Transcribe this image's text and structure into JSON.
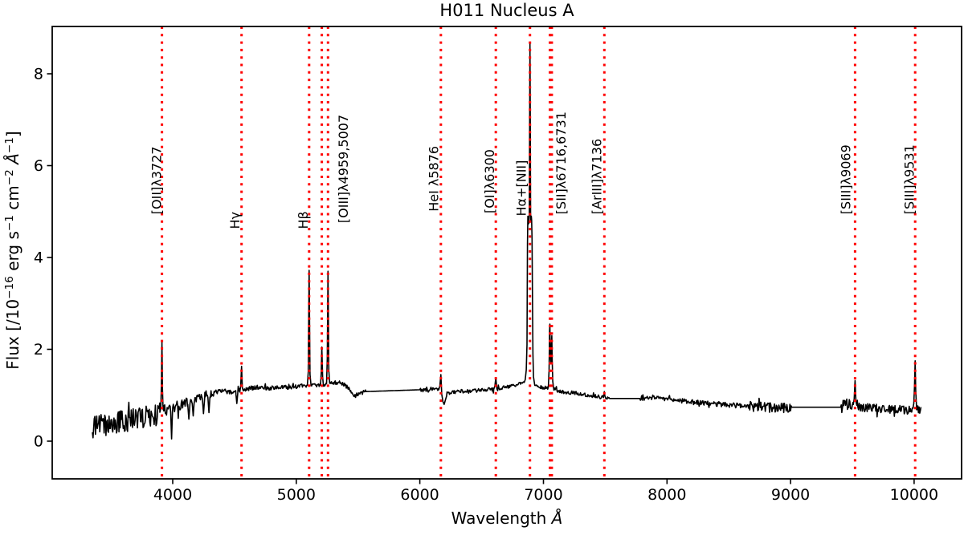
{
  "chart_data": {
    "type": "line",
    "title": "H011 Nucleus A",
    "xlabel_parts": [
      {
        "t": "Wavelength ",
        "s": "n"
      },
      {
        "t": "Å",
        "s": "i"
      }
    ],
    "ylabel_parts": [
      {
        "t": "Flux  [/10",
        "s": "n"
      },
      {
        "t": "−16",
        "s": "sup"
      },
      {
        "t": " erg s",
        "s": "n"
      },
      {
        "t": "−1",
        "s": "sup"
      },
      {
        "t": " cm",
        "s": "n"
      },
      {
        "t": "−2",
        "s": "sup"
      },
      {
        "t": " ",
        "s": "n"
      },
      {
        "t": "Å",
        "s": "i"
      },
      {
        "t": "−1",
        "s": "sup"
      },
      {
        "t": "]",
        "s": "n"
      }
    ],
    "xlim": [
      3025,
      10384
    ],
    "ylim": [
      -0.82,
      9.03
    ],
    "xticks": [
      4000,
      5000,
      6000,
      7000,
      8000,
      9000,
      10000
    ],
    "yticks": [
      0,
      2,
      4,
      6,
      8
    ],
    "grid": false,
    "legend": null,
    "series_color": "#000000",
    "marker_color": "#ff0000",
    "emission_lines": [
      {
        "label": "[OII]λ3727",
        "x": [
          3913
        ],
        "label_x": 3906,
        "label_y": 4.94
      },
      {
        "label": "Hγ",
        "x": [
          4557
        ],
        "label_x": 4540,
        "label_y": 4.62
      },
      {
        "label": "Hβ",
        "x": [
          5104
        ],
        "label_x": 5093,
        "label_y": 4.62
      },
      {
        "label": "[OIII]λ4959,5007",
        "x": [
          5207,
          5257
        ],
        "label_x": 5417,
        "label_y": 4.75
      },
      {
        "label": "HeI λ5876",
        "x": [
          6170
        ],
        "label_x": 6148,
        "label_y": 5.0
      },
      {
        "label": "[OI]λ6300",
        "x": [
          6615
        ],
        "label_x": 6602,
        "label_y": 4.96
      },
      {
        "label": "Hα+[NII]",
        "x": [
          6891
        ],
        "label_x": 6858,
        "label_y": 4.9
      },
      {
        "label": "[SII]λ6716,6731",
        "x": [
          7052,
          7068
        ],
        "label_x": 7178,
        "label_y": 4.94
      },
      {
        "label": "[ArIII]λ7136",
        "x": [
          7493
        ],
        "label_x": 7467,
        "label_y": 4.94
      },
      {
        "label": "[SIII]λ9069",
        "x": [
          9522
        ],
        "label_x": 9484,
        "label_y": 4.94
      },
      {
        "label": "[SIII]λ9531",
        "x": [
          10008
        ],
        "label_x": 9996,
        "label_y": 4.94
      }
    ],
    "x_start": 3350,
    "x_end": 10058,
    "sample_step": 5,
    "noise_seed": 11,
    "noise_default": 0.04,
    "gaps": [
      [
        5560,
        6002
      ],
      [
        7530,
        7783
      ],
      [
        9006,
        9409
      ]
    ],
    "continuum": [
      [
        3350,
        0.3
      ],
      [
        3420,
        0.36
      ],
      [
        3500,
        0.4
      ],
      [
        3600,
        0.44
      ],
      [
        3700,
        0.48
      ],
      [
        3800,
        0.54
      ],
      [
        3870,
        0.58
      ],
      [
        3930,
        0.66
      ],
      [
        4000,
        0.72
      ],
      [
        4080,
        0.8
      ],
      [
        4160,
        0.88
      ],
      [
        4240,
        0.98
      ],
      [
        4320,
        1.05
      ],
      [
        4400,
        1.1
      ],
      [
        4470,
        1.07
      ],
      [
        4540,
        1.1
      ],
      [
        4620,
        1.15
      ],
      [
        4700,
        1.18
      ],
      [
        4780,
        1.15
      ],
      [
        4860,
        1.19
      ],
      [
        4940,
        1.17
      ],
      [
        5020,
        1.2
      ],
      [
        5090,
        1.22
      ],
      [
        5130,
        1.23
      ],
      [
        5190,
        1.22
      ],
      [
        5270,
        1.25
      ],
      [
        5330,
        1.28
      ],
      [
        5390,
        1.24
      ],
      [
        5440,
        1.1
      ],
      [
        5475,
        0.98
      ],
      [
        5520,
        1.06
      ],
      [
        5560,
        1.08
      ],
      [
        6002,
        1.12
      ],
      [
        6060,
        1.1
      ],
      [
        6110,
        1.13
      ],
      [
        6153,
        1.12
      ],
      [
        6240,
        1.04
      ],
      [
        6310,
        1.1
      ],
      [
        6380,
        1.08
      ],
      [
        6450,
        1.1
      ],
      [
        6530,
        1.12
      ],
      [
        6598,
        1.13
      ],
      [
        6660,
        1.16
      ],
      [
        6740,
        1.2
      ],
      [
        6800,
        1.24
      ],
      [
        6845,
        1.28
      ],
      [
        6928,
        1.22
      ],
      [
        7000,
        1.17
      ],
      [
        7090,
        1.12
      ],
      [
        7170,
        1.07
      ],
      [
        7260,
        1.05
      ],
      [
        7350,
        1.01
      ],
      [
        7440,
        0.97
      ],
      [
        7530,
        0.93
      ],
      [
        7783,
        0.93
      ],
      [
        7860,
        0.94
      ],
      [
        7960,
        0.95
      ],
      [
        8060,
        0.9
      ],
      [
        8160,
        0.86
      ],
      [
        8260,
        0.84
      ],
      [
        8360,
        0.82
      ],
      [
        8460,
        0.8
      ],
      [
        8560,
        0.78
      ],
      [
        8660,
        0.76
      ],
      [
        8780,
        0.74
      ],
      [
        8900,
        0.72
      ],
      [
        9006,
        0.74
      ],
      [
        9409,
        0.74
      ],
      [
        9460,
        0.79
      ],
      [
        9508,
        0.77
      ],
      [
        9536,
        0.76
      ],
      [
        9600,
        0.73
      ],
      [
        9700,
        0.72
      ],
      [
        9800,
        0.7
      ],
      [
        9900,
        0.69
      ],
      [
        9990,
        0.67
      ],
      [
        10058,
        0.64
      ]
    ],
    "noise_segments": [
      [
        3350,
        3896,
        0.24
      ],
      [
        3928,
        4150,
        0.13
      ],
      [
        4150,
        4330,
        0.09
      ],
      [
        4330,
        4543,
        0.05
      ],
      [
        4571,
        5090,
        0.045
      ],
      [
        5118,
        5196,
        0.04
      ],
      [
        5219,
        5245,
        0.04
      ],
      [
        5270,
        5560,
        0.045
      ],
      [
        6002,
        6153,
        0.04
      ],
      [
        6216,
        6598,
        0.04
      ],
      [
        6630,
        6845,
        0.035
      ],
      [
        6928,
        7040,
        0.04
      ],
      [
        7082,
        7486,
        0.04
      ],
      [
        7783,
        8120,
        0.045
      ],
      [
        8120,
        8660,
        0.055
      ],
      [
        8660,
        9006,
        0.11
      ],
      [
        9409,
        9508,
        0.16
      ],
      [
        9536,
        9990,
        0.095
      ],
      [
        10019,
        10058,
        0.12
      ]
    ],
    "profiles": [
      [
        [
          3896,
          0.63
        ],
        [
          3904,
          0.72
        ],
        [
          3909,
          1.3
        ],
        [
          3913,
          2.15
        ],
        [
          3917,
          1.15
        ],
        [
          3922,
          0.7
        ],
        [
          3928,
          0.66
        ]
      ],
      [
        [
          3984,
          0.62
        ],
        [
          3991,
          0.05
        ],
        [
          3998,
          0.64
        ]
      ],
      [
        [
          4122,
          0.8
        ],
        [
          4131,
          0.48
        ],
        [
          4140,
          0.82
        ]
      ],
      [
        [
          4158,
          0.82
        ],
        [
          4166,
          0.55
        ],
        [
          4174,
          0.84
        ]
      ],
      [
        [
          4240,
          0.93
        ],
        [
          4249,
          0.6
        ],
        [
          4258,
          0.92
        ]
      ],
      [
        [
          4285,
          0.95
        ],
        [
          4293,
          0.62
        ],
        [
          4301,
          0.96
        ]
      ],
      [
        [
          4512,
          1.02
        ],
        [
          4519,
          0.82
        ],
        [
          4526,
          1.03
        ]
      ],
      [
        [
          4543,
          1.07
        ],
        [
          4550,
          1.2
        ],
        [
          4557,
          1.63
        ],
        [
          4564,
          1.16
        ],
        [
          4571,
          1.1
        ]
      ],
      [
        [
          5090,
          1.22
        ],
        [
          5097,
          1.5
        ],
        [
          5104,
          3.72
        ],
        [
          5111,
          1.45
        ],
        [
          5118,
          1.25
        ]
      ],
      [
        [
          5196,
          1.22
        ],
        [
          5202,
          1.5
        ],
        [
          5207,
          2.05
        ],
        [
          5213,
          1.4
        ],
        [
          5219,
          1.23
        ]
      ],
      [
        [
          5245,
          1.25
        ],
        [
          5251,
          1.8
        ],
        [
          5257,
          3.7
        ],
        [
          5263,
          1.55
        ],
        [
          5270,
          1.26
        ]
      ],
      [
        [
          6153,
          1.12
        ],
        [
          6162,
          1.2
        ],
        [
          6170,
          1.45
        ],
        [
          6177,
          1.02
        ],
        [
          6187,
          0.86
        ],
        [
          6197,
          0.8
        ],
        [
          6207,
          0.9
        ],
        [
          6216,
          0.98
        ]
      ],
      [
        [
          6598,
          1.13
        ],
        [
          6607,
          1.2
        ],
        [
          6615,
          1.38
        ],
        [
          6623,
          1.14
        ],
        [
          6630,
          1.1
        ]
      ],
      [
        [
          6845,
          1.28
        ],
        [
          6853,
          1.34
        ],
        [
          6861,
          1.55
        ],
        [
          6867,
          2.1
        ],
        [
          6871,
          4.3
        ],
        [
          6874,
          4.9
        ],
        [
          6877,
          4.72
        ],
        [
          6880,
          4.88
        ],
        [
          6883,
          4.75
        ],
        [
          6886,
          5.0
        ],
        [
          6889,
          7.2
        ],
        [
          6891,
          8.65
        ],
        [
          6893,
          7.4
        ],
        [
          6896,
          4.95
        ],
        [
          6899,
          4.78
        ],
        [
          6902,
          4.9
        ],
        [
          6905,
          4.8
        ],
        [
          6908,
          4.4
        ],
        [
          6911,
          3.2
        ],
        [
          6915,
          1.9
        ],
        [
          6920,
          1.4
        ],
        [
          6928,
          1.25
        ]
      ],
      [
        [
          7040,
          1.18
        ],
        [
          7046,
          1.55
        ],
        [
          7050,
          2.4
        ],
        [
          7052,
          2.55
        ],
        [
          7055,
          2.0
        ],
        [
          7058,
          1.78
        ],
        [
          7061,
          1.72
        ],
        [
          7064,
          2.05
        ],
        [
          7068,
          2.3
        ],
        [
          7071,
          1.75
        ],
        [
          7076,
          1.3
        ],
        [
          7082,
          1.16
        ]
      ],
      [
        [
          7486,
          0.96
        ],
        [
          7490,
          1.01
        ],
        [
          7493,
          1.08
        ],
        [
          7497,
          0.99
        ],
        [
          7502,
          0.95
        ]
      ],
      [
        [
          9508,
          0.8
        ],
        [
          9515,
          0.92
        ],
        [
          9522,
          1.32
        ],
        [
          9529,
          0.86
        ],
        [
          9536,
          0.78
        ]
      ],
      [
        [
          9990,
          0.72
        ],
        [
          9997,
          0.82
        ],
        [
          10003,
          1.2
        ],
        [
          10008,
          1.75
        ],
        [
          10013,
          1.1
        ],
        [
          10019,
          0.75
        ]
      ]
    ]
  }
}
